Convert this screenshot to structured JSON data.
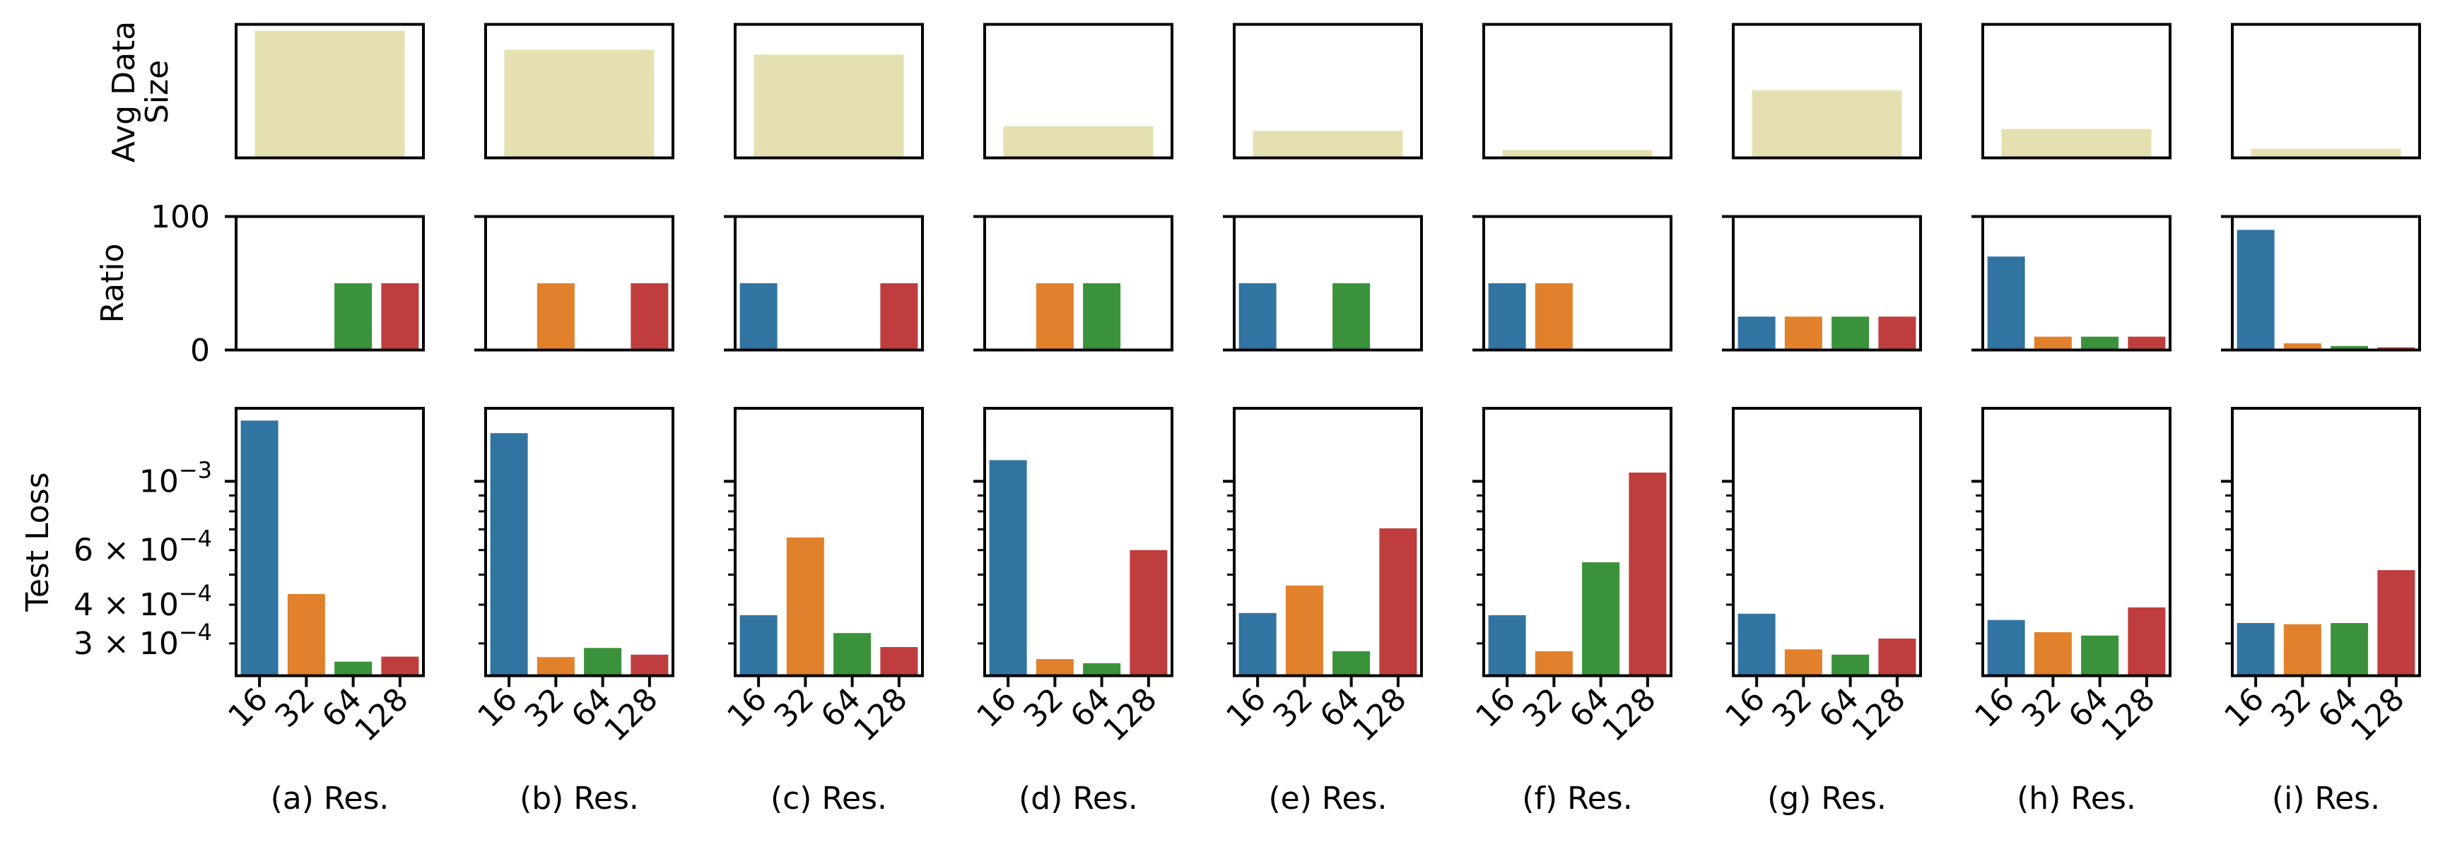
{
  "chart_data": {
    "type": "bar",
    "layout": "3 rows x 9 columns of small-multiple bar panels",
    "categories": [
      "16",
      "32",
      "64",
      "128"
    ],
    "x_tick_rotation_deg": 45,
    "series_colors": {
      "16": "#3274a1",
      "32": "#e1812c",
      "64": "#3a923a",
      "128": "#c03d3e",
      "avg_data_size": "#e4e0b1"
    },
    "rows": {
      "avg_data_size": {
        "ylabel": "Avg Data\nSize",
        "ylabel_lines": [
          "Avg Data",
          "Size"
        ],
        "yscale": "linear",
        "units_note": "relative (tick labels hidden)",
        "ylim": [
          0,
          10752
        ],
        "show_yticks": false
      },
      "ratio": {
        "ylabel": "Ratio",
        "yscale": "linear",
        "ylim": [
          0,
          100
        ],
        "yticks": [
          0,
          100
        ],
        "ytick_labels": [
          "0",
          "100"
        ]
      },
      "test_loss": {
        "ylabel": "Test Loss",
        "yscale": "log",
        "ylim": [
          0.000236,
          0.00172
        ],
        "major_ticks": [
          0.001
        ],
        "minor_ticks": [
          0.0009,
          0.0008,
          0.0007,
          0.0006,
          0.0005,
          0.0004,
          0.0003
        ],
        "labeled_ticks": [
          {
            "value": 0.001,
            "mantissa": "",
            "exponent": "−3"
          },
          {
            "value": 0.0006,
            "mantissa": "6",
            "exponent": "−4"
          },
          {
            "value": 0.0004,
            "mantissa": "4",
            "exponent": "−4"
          },
          {
            "value": 0.0003,
            "mantissa": "3",
            "exponent": "−4"
          }
        ],
        "tick_base": "10",
        "times_sign": "×"
      }
    },
    "panels": [
      {
        "caption": "(a) Res.",
        "avg_data_size": 10240,
        "ratio": [
          0,
          0,
          50,
          50
        ],
        "test_loss": [
          0.00157,
          0.000433,
          0.000262,
          0.000272
        ]
      },
      {
        "caption": "(b) Res.",
        "avg_data_size": 8704,
        "ratio": [
          0,
          50,
          0,
          50
        ],
        "test_loss": [
          0.00143,
          0.000271,
          0.00029,
          0.000276
        ]
      },
      {
        "caption": "(c) Res.",
        "avg_data_size": 8320,
        "ratio": [
          50,
          0,
          0,
          50
        ],
        "test_loss": [
          0.00037,
          0.000659,
          0.000324,
          0.000292
        ]
      },
      {
        "caption": "(d) Res.",
        "avg_data_size": 2560,
        "ratio": [
          0,
          50,
          50,
          0
        ],
        "test_loss": [
          0.00117,
          0.000267,
          0.000259,
          0.0006
        ]
      },
      {
        "caption": "(e) Res.",
        "avg_data_size": 2176,
        "ratio": [
          50,
          0,
          50,
          0
        ],
        "test_loss": [
          0.000376,
          0.000461,
          0.000283,
          0.000705
        ]
      },
      {
        "caption": "(f) Res.",
        "avg_data_size": 640,
        "ratio": [
          50,
          50,
          0,
          0
        ],
        "test_loss": [
          0.00037,
          0.000283,
          0.000548,
          0.001067
        ]
      },
      {
        "caption": "(g) Res.",
        "avg_data_size": 5440,
        "ratio": [
          25,
          25,
          25,
          25
        ],
        "test_loss": [
          0.000374,
          0.000287,
          0.000276,
          0.000311
        ]
      },
      {
        "caption": "(h) Res.",
        "avg_data_size": 2329.6,
        "ratio": [
          70,
          10,
          10,
          10
        ],
        "test_loss": [
          0.000357,
          0.000326,
          0.000318,
          0.000392
        ]
      },
      {
        "caption": "(i) Res.",
        "avg_data_size": 732.2,
        "ratio": [
          90,
          5,
          3,
          2
        ],
        "test_loss": [
          0.000349,
          0.000346,
          0.000349,
          0.000517
        ]
      }
    ]
  }
}
